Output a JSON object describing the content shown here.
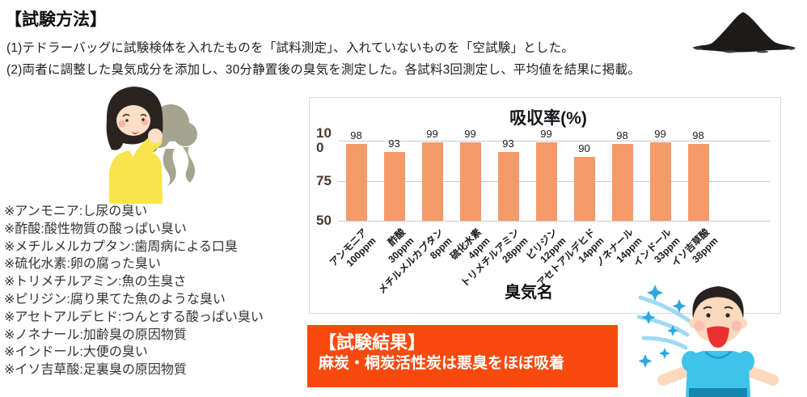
{
  "method": {
    "title": "【試験方法】",
    "line1": "(1)テドラーバッグに試験検体を入れたものを「試料測定」、入れていないものを「空試験」とした。",
    "line2": "(2)両者に調整した臭気成分を添加し、30分静置後の臭気を測定した。各試料3回測定し、平均値を結果に掲載。"
  },
  "odor_notes": [
    "※アンモニア:し尿の臭い",
    "※酢酸:酸性物質の酸っぱい臭い",
    "※メチルメルカプタン:歯周病による口臭",
    "※硫化水素:卵の腐った臭い",
    "※トリメチルアミン:魚の生臭さ",
    "※ピリジン:腐り果てた魚のような臭い",
    "※アセトアルデヒド:つんとする酸っぱい臭い",
    "※ノネナール:加齢臭の原因物質",
    "※インドール:大便の臭い",
    "※イソ吉草酸:足裏臭の原因物質"
  ],
  "chart_data": {
    "type": "bar",
    "title": "吸収率(%)",
    "xlabel": "臭気名",
    "ylabel": "",
    "categories": [
      "アンモニア",
      "酢酸",
      "メチルメルカプタン",
      "硫化水素",
      "トリメチルアミン",
      "ピリジン",
      "アセトアルデヒド",
      "ノネナール",
      "インドール",
      "イソ吉草酸"
    ],
    "concentrations": [
      "100ppm",
      "30ppm",
      "8ppm",
      "4ppm",
      "28ppm",
      "12ppm",
      "14ppm",
      "14ppm",
      "33ppm",
      "38ppm"
    ],
    "values": [
      98,
      93,
      99,
      99,
      93,
      99,
      90,
      98,
      99,
      98
    ],
    "ylim": [
      50,
      100
    ],
    "yticks": [
      100,
      75,
      50
    ],
    "grid": true,
    "legend": false,
    "bar_color": "#f59a69",
    "gridline_color": "#c9c9c9"
  },
  "result_box": {
    "title": "【試験結果】",
    "text": "麻炭・桐炭活性炭は悪臭をほぼ吸着",
    "bg_color": "#f94a0d"
  },
  "icons": {
    "charcoal": "charcoal-powder-pile",
    "woman": "woman-covering-nose-bad-smell",
    "boy": "boy-happy-fresh-air"
  }
}
